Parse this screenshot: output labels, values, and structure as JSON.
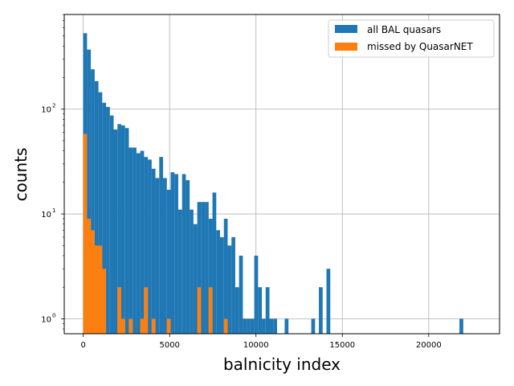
{
  "chart_data": {
    "type": "bar",
    "subtype": "histogram",
    "xlabel": "balnicity index",
    "ylabel": "counts",
    "yscale": "log",
    "xlim": [
      -1100,
      24100
    ],
    "ylim": [
      0.72,
      800
    ],
    "grid": true,
    "legend": {
      "placement": "top-right"
    },
    "x_ticks": [
      "0",
      "5000",
      "10000",
      "15000",
      "20000"
    ],
    "x_tick_values": [
      0,
      5000,
      10000,
      15000,
      20000
    ],
    "y_ticks": [
      {
        "value": 1,
        "base": "10",
        "exp": "0"
      },
      {
        "value": 10,
        "base": "10",
        "exp": "1"
      },
      {
        "value": 100,
        "base": "10",
        "exp": "2"
      }
    ],
    "bin_width": 220,
    "series": [
      {
        "name": "all BAL quasars",
        "color": "#1f77b4",
        "bins": [
          {
            "x": 0,
            "y": 530
          },
          {
            "x": 220,
            "y": 370
          },
          {
            "x": 440,
            "y": 240
          },
          {
            "x": 660,
            "y": 185
          },
          {
            "x": 880,
            "y": 145
          },
          {
            "x": 1100,
            "y": 115
          },
          {
            "x": 1320,
            "y": 105
          },
          {
            "x": 1540,
            "y": 87
          },
          {
            "x": 1760,
            "y": 64
          },
          {
            "x": 1980,
            "y": 72
          },
          {
            "x": 2200,
            "y": 70
          },
          {
            "x": 2420,
            "y": 66
          },
          {
            "x": 2640,
            "y": 43
          },
          {
            "x": 2860,
            "y": 43
          },
          {
            "x": 3080,
            "y": 38
          },
          {
            "x": 3300,
            "y": 40
          },
          {
            "x": 3520,
            "y": 35
          },
          {
            "x": 3740,
            "y": 33
          },
          {
            "x": 3960,
            "y": 27
          },
          {
            "x": 4180,
            "y": 22
          },
          {
            "x": 4400,
            "y": 35
          },
          {
            "x": 4620,
            "y": 22
          },
          {
            "x": 4840,
            "y": 17
          },
          {
            "x": 5060,
            "y": 25
          },
          {
            "x": 5280,
            "y": 24
          },
          {
            "x": 5500,
            "y": 11
          },
          {
            "x": 5720,
            "y": 24
          },
          {
            "x": 5940,
            "y": 21
          },
          {
            "x": 6160,
            "y": 11
          },
          {
            "x": 6380,
            "y": 8
          },
          {
            "x": 6600,
            "y": 13
          },
          {
            "x": 6820,
            "y": 13
          },
          {
            "x": 7040,
            "y": 13
          },
          {
            "x": 7260,
            "y": 9
          },
          {
            "x": 7480,
            "y": 16
          },
          {
            "x": 7700,
            "y": 7
          },
          {
            "x": 7920,
            "y": 6
          },
          {
            "x": 8140,
            "y": 9
          },
          {
            "x": 8360,
            "y": 5
          },
          {
            "x": 8580,
            "y": 6
          },
          {
            "x": 8800,
            "y": 2
          },
          {
            "x": 9020,
            "y": 4
          },
          {
            "x": 9240,
            "y": 1
          },
          {
            "x": 9460,
            "y": 1
          },
          {
            "x": 9680,
            "y": 1
          },
          {
            "x": 9900,
            "y": 4
          },
          {
            "x": 10120,
            "y": 2
          },
          {
            "x": 10340,
            "y": 1
          },
          {
            "x": 10560,
            "y": 2
          },
          {
            "x": 10780,
            "y": 1
          },
          {
            "x": 11000,
            "y": 1
          },
          {
            "x": 11660,
            "y": 1
          },
          {
            "x": 13200,
            "y": 1
          },
          {
            "x": 13640,
            "y": 2
          },
          {
            "x": 14080,
            "y": 3
          },
          {
            "x": 21780,
            "y": 1
          }
        ]
      },
      {
        "name": "missed by QuasarNET",
        "color": "#ff7f0e",
        "bins": [
          {
            "x": 0,
            "y": 58
          },
          {
            "x": 220,
            "y": 9
          },
          {
            "x": 440,
            "y": 7
          },
          {
            "x": 660,
            "y": 5
          },
          {
            "x": 880,
            "y": 5
          },
          {
            "x": 1100,
            "y": 3
          },
          {
            "x": 1980,
            "y": 2
          },
          {
            "x": 2200,
            "y": 1
          },
          {
            "x": 2640,
            "y": 1
          },
          {
            "x": 3300,
            "y": 1
          },
          {
            "x": 3520,
            "y": 2
          },
          {
            "x": 3960,
            "y": 1
          },
          {
            "x": 4840,
            "y": 1
          },
          {
            "x": 6600,
            "y": 2
          },
          {
            "x": 7260,
            "y": 2
          },
          {
            "x": 8140,
            "y": 1
          }
        ]
      }
    ]
  }
}
